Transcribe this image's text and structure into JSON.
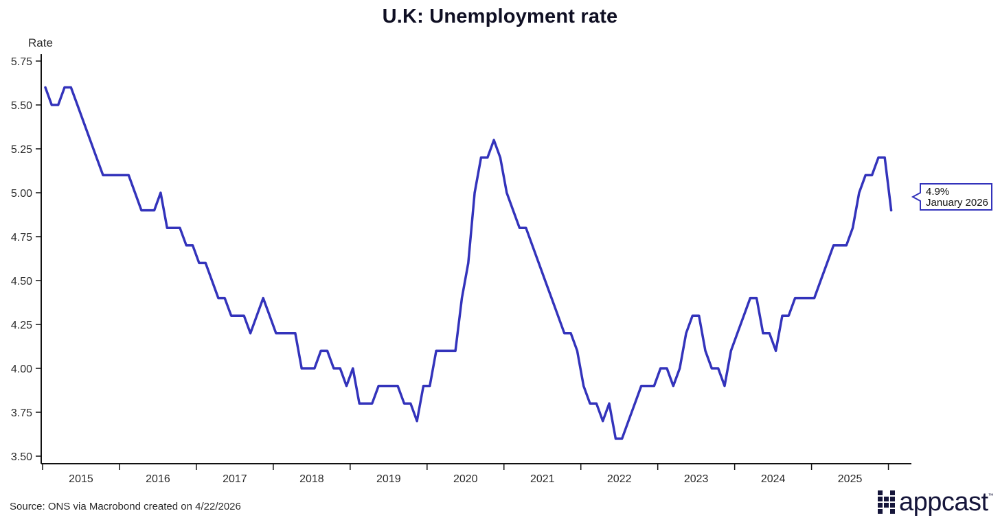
{
  "chart_data": {
    "type": "line",
    "title": "U.K: Unemployment rate",
    "ylabel": "Rate",
    "xlabel": "",
    "ylim": [
      3.5,
      5.75
    ],
    "yticks": [
      "3.50",
      "3.75",
      "4.00",
      "4.25",
      "4.50",
      "4.75",
      "5.00",
      "5.25",
      "5.50",
      "5.75"
    ],
    "xticks": [
      "2015",
      "2016",
      "2017",
      "2018",
      "2019",
      "2020",
      "2021",
      "2022",
      "2023",
      "2024",
      "2025"
    ],
    "x_start": "2015-01",
    "x_end": "2026-01",
    "grid": false,
    "color": "#3333bb",
    "series": [
      {
        "name": "",
        "values": [
          5.6,
          5.5,
          5.5,
          5.6,
          5.6,
          5.5,
          5.4,
          5.3,
          5.2,
          5.1,
          5.1,
          5.1,
          5.1,
          5.1,
          5.0,
          4.9,
          4.9,
          4.9,
          5.0,
          4.8,
          4.8,
          4.8,
          4.7,
          4.7,
          4.6,
          4.6,
          4.5,
          4.4,
          4.4,
          4.3,
          4.3,
          4.3,
          4.2,
          4.3,
          4.4,
          4.3,
          4.2,
          4.2,
          4.2,
          4.2,
          4.0,
          4.0,
          4.0,
          4.1,
          4.1,
          4.0,
          4.0,
          3.9,
          4.0,
          3.8,
          3.8,
          3.8,
          3.9,
          3.9,
          3.9,
          3.9,
          3.8,
          3.8,
          3.7,
          3.9,
          3.9,
          4.1,
          4.1,
          4.1,
          4.1,
          4.4,
          4.6,
          5.0,
          5.2,
          5.2,
          5.3,
          5.2,
          5.0,
          4.9,
          4.8,
          4.8,
          4.7,
          4.6,
          4.5,
          4.4,
          4.3,
          4.2,
          4.2,
          4.1,
          3.9,
          3.8,
          3.8,
          3.7,
          3.8,
          3.6,
          3.6,
          3.7,
          3.8,
          3.9,
          3.9,
          3.9,
          4.0,
          4.0,
          3.9,
          4.0,
          4.2,
          4.3,
          4.3,
          4.1,
          4.0,
          4.0,
          3.9,
          4.1,
          4.2,
          4.3,
          4.4,
          4.4,
          4.2,
          4.2,
          4.1,
          4.3,
          4.3,
          4.4,
          4.4,
          4.4,
          4.4,
          4.5,
          4.6,
          4.7,
          4.7,
          4.7,
          4.8,
          5.0,
          5.1,
          5.1,
          5.2,
          5.2,
          4.9
        ]
      }
    ],
    "callout": {
      "value": "4.9%",
      "date": "January 2026"
    }
  },
  "footer": {
    "source": "Source: ONS via Macrobond created on 4/22/2026",
    "brand": "appcast",
    "brand_tm": "™"
  }
}
